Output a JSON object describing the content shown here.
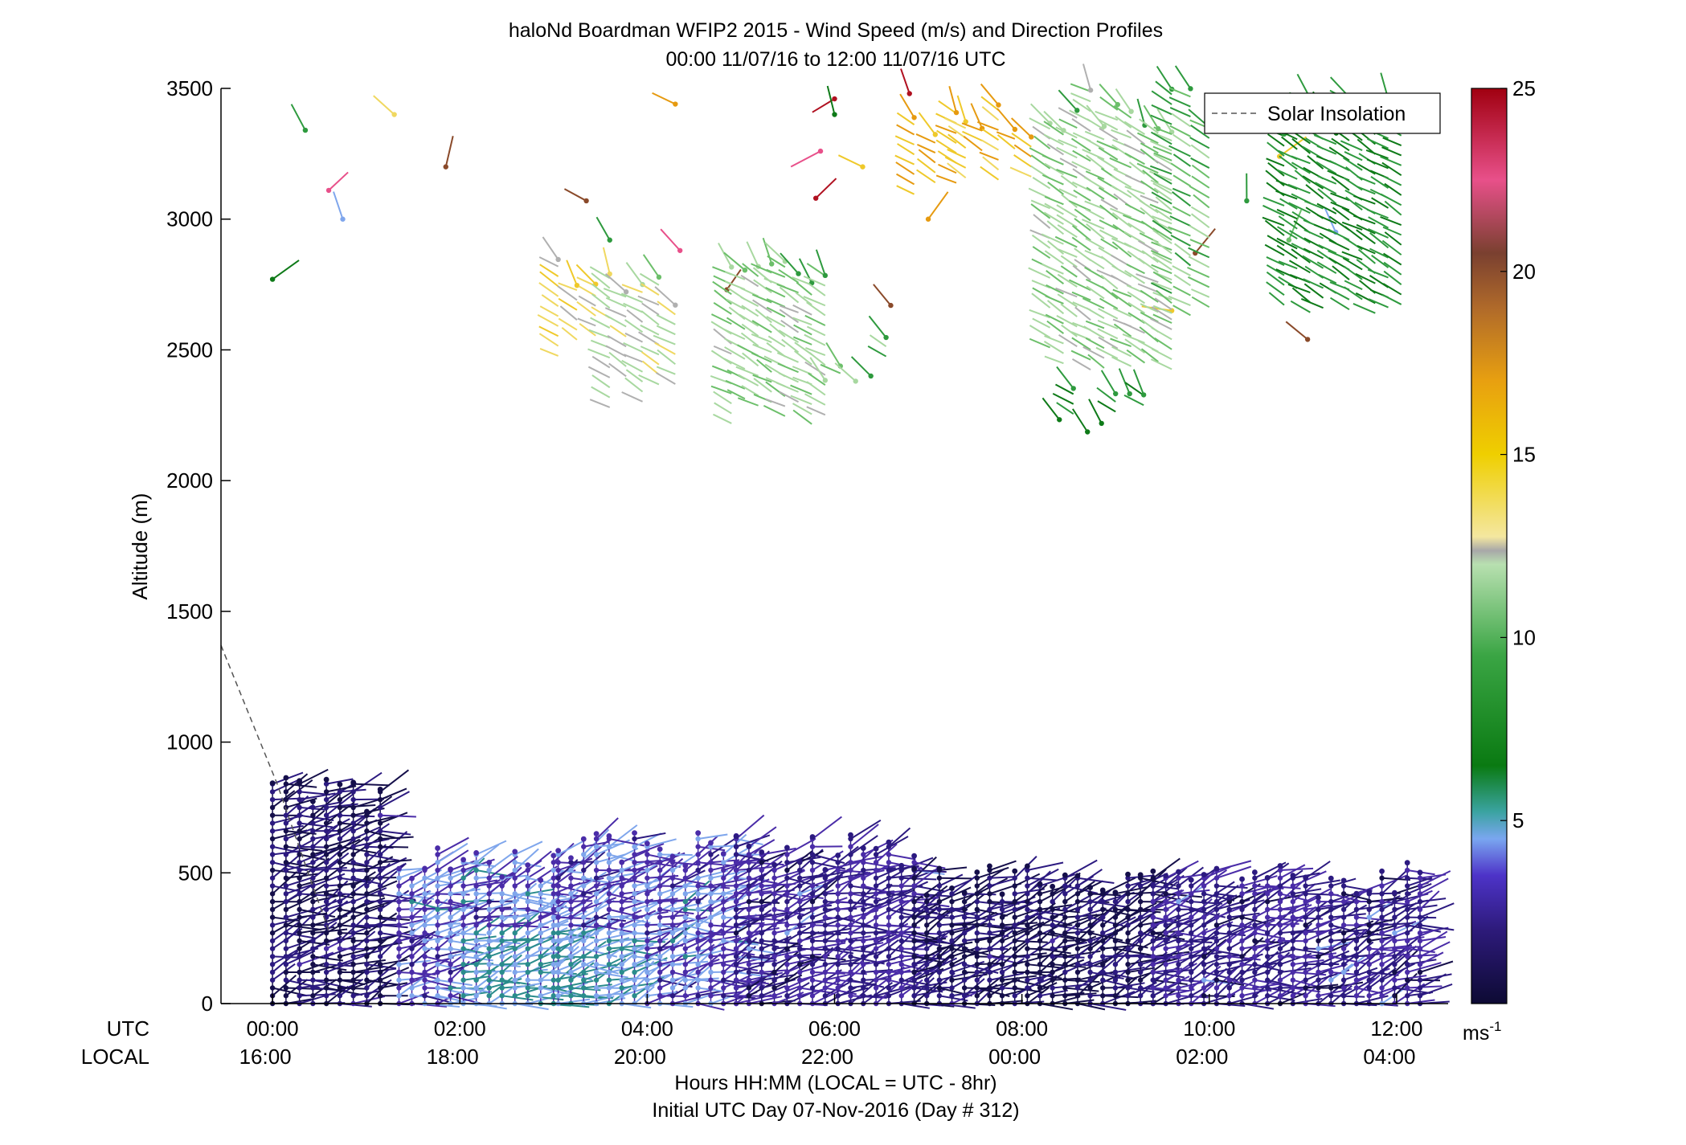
{
  "chart_data": {
    "type": "scatter",
    "title": "haloNd Boardman WFIP2 2015 - Wind Speed (m/s) and Direction Profiles",
    "subtitle": "00:00 11/07/16 to 12:00 11/07/16  UTC",
    "ylabel": "Altitude (m)",
    "xlabel": "Hours HH:MM  (LOCAL = UTC - 8hr)",
    "xlabel2": "Initial UTC Day 07-Nov-2016 (Day # 312)",
    "ylim": [
      0,
      3500
    ],
    "yticks": [
      "0",
      "500",
      "1000",
      "1500",
      "2000",
      "2500",
      "3000",
      "3500"
    ],
    "xlim": [
      -0.55,
      12.55
    ],
    "row_labels": {
      "utc": "UTC",
      "local": "LOCAL"
    },
    "xticks_utc": [
      "00:00",
      "02:00",
      "04:00",
      "06:00",
      "08:00",
      "10:00",
      "12:00"
    ],
    "xticks_local": [
      "16:00",
      "18:00",
      "20:00",
      "22:00",
      "00:00",
      "02:00",
      "04:00"
    ],
    "legend": {
      "label": "Solar Insolation",
      "placement": "top-right"
    },
    "colorbar": {
      "ticks": [
        "5",
        "10",
        "15",
        "20",
        "25"
      ],
      "unit_label": "ms",
      "unit_exponent": "-1",
      "range": [
        0,
        25
      ]
    },
    "colors": {
      "low": "#150f4a",
      "mid_low": "#4a2ca8",
      "light_blue": "#7fa6ec",
      "green": "#2e9a3e",
      "light_green": "#a8d8a0",
      "yellow": "#efc92a",
      "orange": "#e69a10",
      "brown": "#8a4a2a",
      "red": "#b01020"
    },
    "solar_insolation_line": [
      [
        -0.55,
        1370
      ],
      [
        0.05,
        840
      ],
      [
        0.4,
        480
      ],
      [
        0.6,
        280
      ]
    ],
    "upper_sparse_barbs": [
      {
        "t": 0.35,
        "alt": 3340,
        "speed": 9
      },
      {
        "t": 0.6,
        "alt": 3110,
        "speed": 22
      },
      {
        "t": 0.75,
        "alt": 3000,
        "speed": 4
      },
      {
        "t": 0.0,
        "alt": 2770,
        "speed": 6
      },
      {
        "t": 1.3,
        "alt": 3400,
        "speed": 14
      },
      {
        "t": 1.85,
        "alt": 3200,
        "speed": 20
      },
      {
        "t": 3.35,
        "alt": 3070,
        "speed": 20
      },
      {
        "t": 3.6,
        "alt": 2920,
        "speed": 9
      },
      {
        "t": 4.3,
        "alt": 3440,
        "speed": 17
      },
      {
        "t": 4.35,
        "alt": 2880,
        "speed": 22
      },
      {
        "t": 4.85,
        "alt": 2730,
        "speed": 19
      },
      {
        "t": 5.85,
        "alt": 3260,
        "speed": 22
      },
      {
        "t": 5.8,
        "alt": 3080,
        "speed": 25
      },
      {
        "t": 6.0,
        "alt": 3460,
        "speed": 25
      },
      {
        "t": 6.0,
        "alt": 3400,
        "speed": 7
      },
      {
        "t": 6.3,
        "alt": 3200,
        "speed": 15
      },
      {
        "t": 7.0,
        "alt": 3000,
        "speed": 16
      },
      {
        "t": 6.8,
        "alt": 3480,
        "speed": 25
      },
      {
        "t": 6.6,
        "alt": 2670,
        "speed": 20
      },
      {
        "t": 9.85,
        "alt": 2870,
        "speed": 20
      },
      {
        "t": 10.4,
        "alt": 3070,
        "speed": 9
      },
      {
        "t": 10.75,
        "alt": 3240,
        "speed": 15
      },
      {
        "t": 10.85,
        "alt": 2920,
        "speed": 10
      },
      {
        "t": 11.35,
        "alt": 2950,
        "speed": 4
      },
      {
        "t": 11.05,
        "alt": 2540,
        "speed": 20
      },
      {
        "t": 9.6,
        "alt": 2650,
        "speed": 15
      }
    ],
    "upper_column_groups": [
      {
        "t0": 3.05,
        "t1": 3.45,
        "alt0": 2450,
        "alt1": 2870,
        "speed": 14
      },
      {
        "t0": 3.6,
        "t1": 4.3,
        "alt0": 2280,
        "alt1": 2820,
        "speed": 12
      },
      {
        "t0": 4.9,
        "t1": 5.9,
        "alt0": 2200,
        "alt1": 2900,
        "speed": 11
      },
      {
        "t0": 5.9,
        "t1": 6.55,
        "alt0": 2380,
        "alt1": 2550,
        "speed": 10
      },
      {
        "t0": 6.85,
        "t1": 7.3,
        "alt0": 3030,
        "alt1": 3500,
        "speed": 16
      },
      {
        "t0": 7.4,
        "t1": 8.1,
        "alt0": 3150,
        "alt1": 3450,
        "speed": 15
      },
      {
        "t0": 8.3,
        "t1": 9.6,
        "alt0": 2420,
        "alt1": 3500,
        "speed": 11
      },
      {
        "t0": 9.6,
        "t1": 10.0,
        "alt0": 2580,
        "alt1": 3500,
        "speed": 10
      },
      {
        "t0": 10.8,
        "t1": 12.05,
        "alt0": 2620,
        "alt1": 3500,
        "speed": 8
      },
      {
        "t0": 8.4,
        "t1": 9.3,
        "alt0": 2240,
        "alt1": 2360,
        "speed": 8
      }
    ],
    "lower_column_groups": [
      {
        "t0": 0.0,
        "t1": 1.15,
        "alt0": 0,
        "alt1": 870,
        "speed": 1
      },
      {
        "t0": 1.35,
        "t1": 3.0,
        "alt0": 0,
        "alt1": 600,
        "speed": 3
      },
      {
        "t0": 3.05,
        "t1": 4.95,
        "alt0": 0,
        "alt1": 660,
        "speed": 3
      },
      {
        "t0": 4.95,
        "t1": 6.85,
        "alt0": 0,
        "alt1": 650,
        "speed": 2
      },
      {
        "t0": 6.85,
        "t1": 9.4,
        "alt0": 0,
        "alt1": 540,
        "speed": 1
      },
      {
        "t0": 9.4,
        "t1": 12.25,
        "alt0": 0,
        "alt1": 540,
        "speed": 2
      }
    ]
  }
}
